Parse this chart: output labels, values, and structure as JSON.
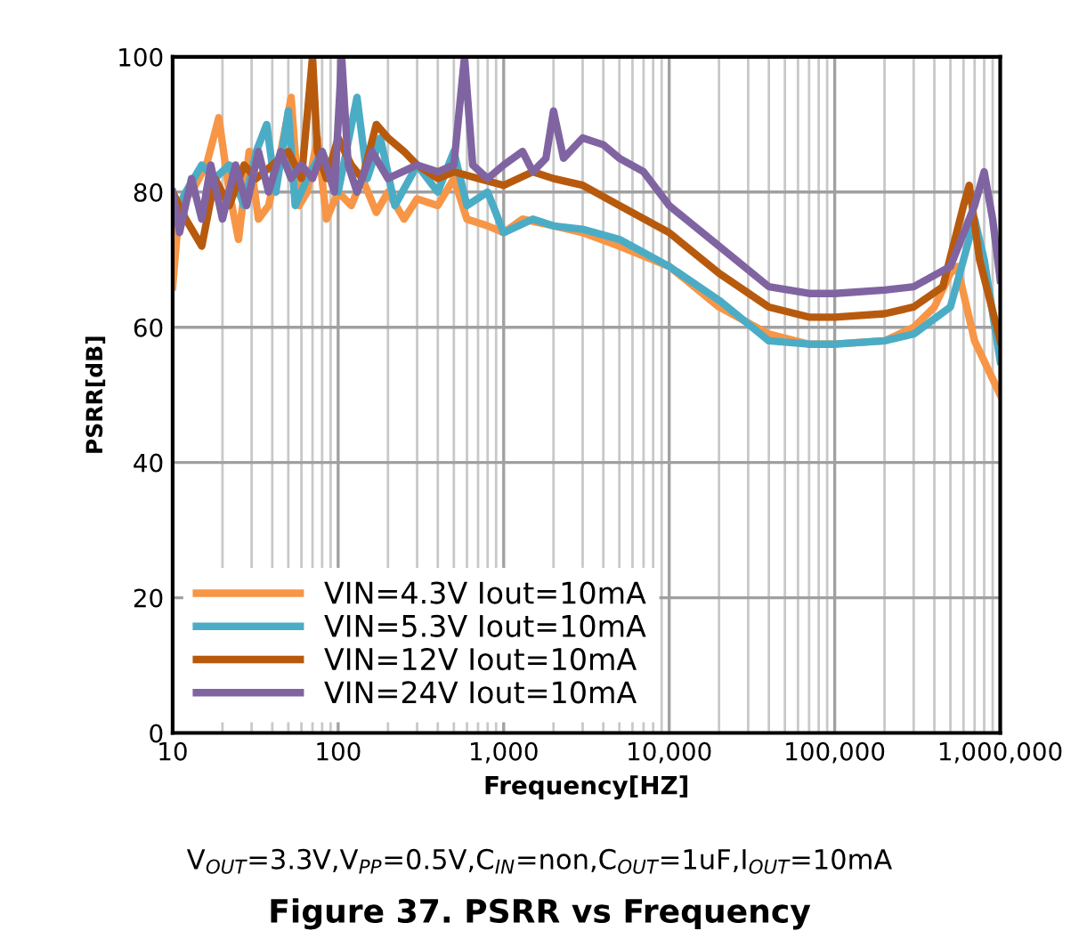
{
  "chart_data": {
    "type": "line",
    "title": "Figure 37. PSRR vs Frequency",
    "xlabel": "Frequency[HZ]",
    "ylabel": "PSRR[dB]",
    "annotations": [
      "V$_{OUT}$=3.3V,V$_{PP}$=0.5V,C$_{IN}$=non,C$_{OUT}$=1uF,I$_{OUT}$=10mA"
    ],
    "log": "x",
    "xlim": [
      10,
      1000000
    ],
    "ylim": [
      0,
      100
    ],
    "xticks": [
      10,
      100,
      {
        "value": 1000,
        "label": "1,000"
      },
      {
        "value": 10000,
        "label": "10,000"
      },
      {
        "value": 100000,
        "label": "100,000"
      },
      {
        "value": 1000000,
        "label": "1,000,000"
      }
    ],
    "yticks": [
      0,
      20,
      40,
      60,
      80,
      100
    ],
    "grid": true,
    "legend": "bottom left",
    "line_style": "solid",
    "series": [
      {
        "name": "VIN=4.3V Iout=10mA",
        "color": "#f79646",
        "x": [
          10,
          11,
          13,
          16,
          19,
          22,
          25,
          29,
          33,
          38,
          45,
          52,
          58,
          65,
          75,
          85,
          100,
          120,
          140,
          170,
          200,
          250,
          300,
          400,
          500,
          600,
          800,
          1000,
          1300,
          2000,
          3000,
          5000,
          10000,
          20000,
          40000,
          70000,
          100000,
          200000,
          300000,
          400000,
          500000,
          550000,
          600000,
          700000,
          1000000
        ],
        "values": [
          66,
          78,
          80,
          84,
          91,
          80,
          73,
          86,
          76,
          78,
          86,
          94,
          78,
          80,
          88,
          76,
          80,
          78,
          82,
          77,
          80,
          76,
          79,
          78,
          82,
          76,
          75,
          74,
          76,
          75,
          74,
          72,
          69,
          63,
          59,
          57.5,
          57.5,
          58,
          60,
          63,
          68,
          69,
          65,
          58,
          50
        ]
      },
      {
        "name": "VIN=5.3V Iout=10mA",
        "color": "#4bacc6",
        "x": [
          10,
          12,
          15,
          18,
          22,
          27,
          32,
          37,
          42,
          50,
          55,
          65,
          80,
          100,
          130,
          150,
          180,
          220,
          300,
          400,
          500,
          600,
          800,
          1000,
          1500,
          2000,
          3000,
          5000,
          10000,
          20000,
          40000,
          70000,
          100000,
          200000,
          300000,
          500000,
          600000,
          700000,
          800000,
          1000000
        ],
        "values": [
          76,
          80,
          84,
          82,
          84,
          78,
          86,
          90,
          80,
          92,
          78,
          82,
          86,
          80,
          94,
          82,
          88,
          78,
          84,
          80,
          86,
          78,
          80,
          74,
          76,
          75,
          74.5,
          73,
          69,
          64,
          58,
          57.5,
          57.5,
          58,
          59,
          63,
          70,
          76,
          70,
          55
        ]
      },
      {
        "name": "VIN=12V Iout=10mA",
        "color": "#b85a0e",
        "x": [
          10,
          12,
          15,
          18,
          22,
          27,
          32,
          40,
          50,
          60,
          70,
          75,
          85,
          100,
          120,
          140,
          170,
          200,
          250,
          300,
          400,
          500,
          700,
          1000,
          1500,
          2000,
          3000,
          5000,
          10000,
          20000,
          40000,
          70000,
          100000,
          200000,
          300000,
          450000,
          600000,
          650000,
          750000,
          1000000
        ],
        "values": [
          80,
          76,
          72,
          82,
          78,
          84,
          82,
          84,
          86,
          82,
          100,
          86,
          82,
          88,
          84,
          82,
          90,
          88,
          86,
          84,
          82,
          83,
          82,
          81,
          83,
          82,
          81,
          78,
          74,
          68,
          63,
          61.5,
          61.5,
          62,
          63,
          66,
          78,
          81,
          70,
          58
        ]
      },
      {
        "name": "VIN=24V Iout=10mA",
        "color": "#8064a2",
        "x": [
          10,
          11,
          13,
          15,
          17,
          20,
          24,
          28,
          33,
          38,
          45,
          52,
          60,
          70,
          80,
          95,
          105,
          115,
          130,
          160,
          200,
          300,
          400,
          500,
          580,
          650,
          800,
          1000,
          1300,
          1500,
          1800,
          2000,
          2300,
          3000,
          4000,
          5000,
          7000,
          10000,
          20000,
          40000,
          70000,
          100000,
          200000,
          300000,
          500000,
          700000,
          800000,
          900000,
          1000000
        ],
        "values": [
          80,
          74,
          82,
          76,
          84,
          76,
          84,
          78,
          86,
          80,
          86,
          82,
          84,
          82,
          86,
          80,
          100,
          84,
          80,
          86,
          82,
          84,
          83,
          84,
          100,
          84,
          82,
          84,
          86,
          83,
          85,
          92,
          85,
          88,
          87,
          85,
          83,
          78,
          72,
          66,
          65,
          65,
          65.5,
          66,
          69,
          78,
          83,
          76,
          67
        ]
      }
    ]
  }
}
